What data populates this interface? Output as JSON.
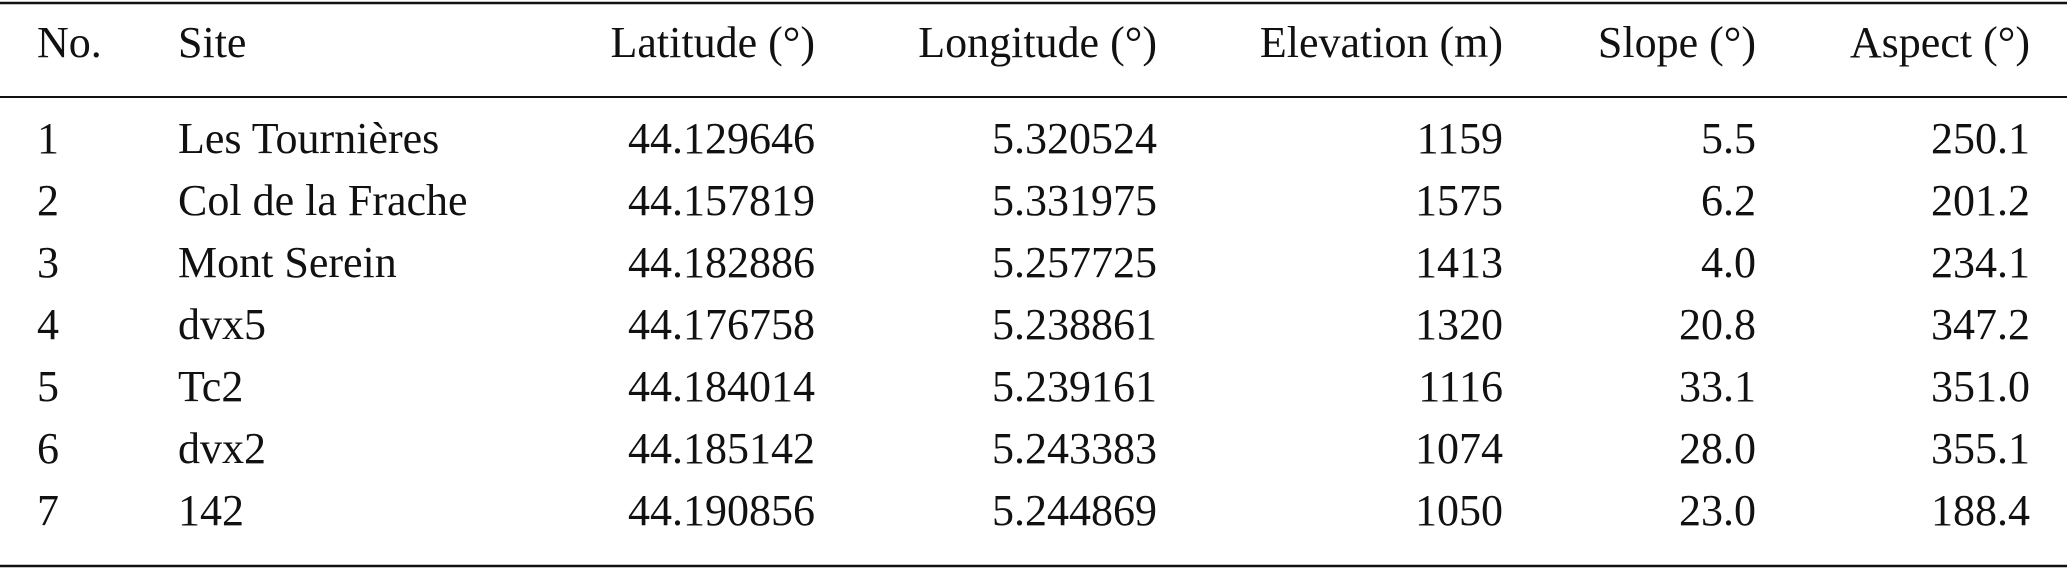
{
  "table": {
    "header": [
      "No.",
      "Site",
      "Latitude (°)",
      "Longitude (°)",
      "Elevation (m)",
      "Slope (°)",
      "Aspect (°)"
    ],
    "rows": [
      [
        "1",
        "Les Tournières",
        "44.129646",
        "5.320524",
        "1159",
        "5.5",
        "250.1"
      ],
      [
        "2",
        "Col de la Frache",
        "44.157819",
        "5.331975",
        "1575",
        "6.2",
        "201.2"
      ],
      [
        "3",
        "Mont Serein",
        "44.182886",
        "5.257725",
        "1413",
        "4.0",
        "234.1"
      ],
      [
        "4",
        "dvx5",
        "44.176758",
        "5.238861",
        "1320",
        "20.8",
        "347.2"
      ],
      [
        "5",
        "Tc2",
        "44.184014",
        "5.239161",
        "1116",
        "33.1",
        "351.0"
      ],
      [
        "6",
        "dvx2",
        "44.185142",
        "5.243383",
        "1074",
        "28.0",
        "355.1"
      ],
      [
        "7",
        "142",
        "44.190856",
        "5.244869",
        "1050",
        "23.0",
        "188.4"
      ]
    ]
  }
}
